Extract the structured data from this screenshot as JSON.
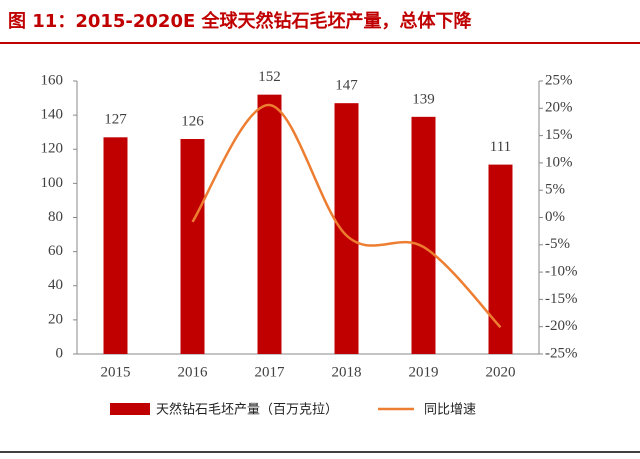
{
  "chart_data": {
    "type": "bar",
    "title": "图 11：2015-2020E 全球天然钻石毛坯产量，总体下降",
    "categories": [
      "2015",
      "2016",
      "2017",
      "2018",
      "2019",
      "2020"
    ],
    "series": [
      {
        "name": "天然钻石毛坯产量（百万克拉）",
        "type": "bar",
        "color": "#c00000",
        "values": [
          127,
          126,
          152,
          147,
          139,
          111
        ]
      },
      {
        "name": "同比增速",
        "type": "line",
        "color": "#ed7d31",
        "axis": "y2",
        "smooth": true,
        "values": [
          null,
          -0.8,
          20.6,
          -3.3,
          -5.4,
          -20.1
        ]
      }
    ],
    "ylim": [
      0,
      160
    ],
    "yticks": [
      0,
      20,
      40,
      60,
      80,
      100,
      120,
      140,
      160
    ],
    "y2lim": [
      -25,
      25
    ],
    "y2ticks": [
      {
        "value": -25,
        "label": "-25%"
      },
      {
        "value": -20,
        "label": "-20%"
      },
      {
        "value": -15,
        "label": "-15%"
      },
      {
        "value": -10,
        "label": "-10%"
      },
      {
        "value": -5,
        "label": "-5%"
      },
      {
        "value": 0,
        "label": "0%"
      },
      {
        "value": 5,
        "label": "5%"
      },
      {
        "value": 10,
        "label": "10%"
      },
      {
        "value": 15,
        "label": "15%"
      },
      {
        "value": 20,
        "label": "20%"
      },
      {
        "value": 25,
        "label": "25%"
      }
    ],
    "grid": false,
    "legend": "bottom"
  }
}
